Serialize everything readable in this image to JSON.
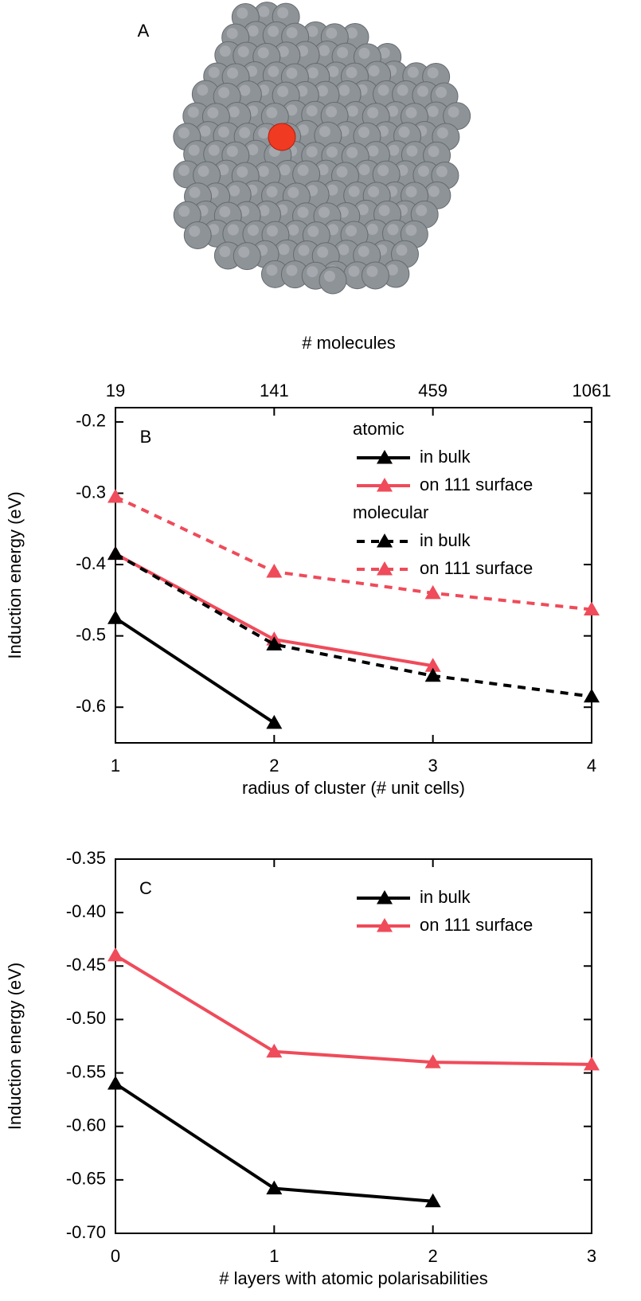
{
  "panel_a": {
    "label": "A"
  },
  "chart_data": [
    {
      "type": "line",
      "label": "B",
      "xlabel": "radius of cluster (# unit cells)",
      "ylabel": "Induction energy (eV)",
      "x2label": "# molecules",
      "x": [
        1,
        2,
        3,
        4
      ],
      "xlim": [
        1,
        4
      ],
      "xticks": [
        1,
        2,
        3,
        4
      ],
      "x2ticks": [
        {
          "value": 1,
          "label": "19"
        },
        {
          "value": 2,
          "label": "141"
        },
        {
          "value": 3,
          "label": "459"
        },
        {
          "value": 4,
          "label": "1061"
        }
      ],
      "ylim": [
        -0.65,
        -0.18
      ],
      "yticks": [
        -0.2,
        -0.3,
        -0.4,
        -0.5,
        -0.6
      ],
      "legend": "upper right",
      "series_groups": [
        {
          "name": "atomic",
          "series": [
            {
              "name": "in bulk",
              "color": "#000000",
              "linestyle": "solid",
              "values": [
                -0.475,
                -0.622,
                null,
                null
              ]
            },
            {
              "name": "on 111 surface",
              "color": "#ef4b5a",
              "linestyle": "solid",
              "values": [
                -0.385,
                -0.505,
                -0.542,
                null
              ]
            }
          ]
        },
        {
          "name": "molecular",
          "series": [
            {
              "name": "in bulk",
              "color": "#000000",
              "linestyle": "dashed",
              "values": [
                -0.385,
                -0.512,
                -0.556,
                -0.585
              ]
            },
            {
              "name": "on 111 surface",
              "color": "#ef4b5a",
              "linestyle": "dashed",
              "values": [
                -0.305,
                -0.41,
                -0.44,
                -0.463
              ]
            }
          ]
        }
      ]
    },
    {
      "type": "line",
      "label": "C",
      "xlabel": "# layers with atomic polarisabilities",
      "ylabel": "Induction energy (eV)",
      "x": [
        0,
        1,
        2,
        3
      ],
      "xlim": [
        0,
        3
      ],
      "xticks": [
        0,
        1,
        2,
        3
      ],
      "ylim": [
        -0.7,
        -0.35
      ],
      "yticks": [
        -0.35,
        {
          "value": -0.4,
          "label": "-0.40"
        },
        -0.45,
        {
          "value": -0.5,
          "label": "-0.50"
        },
        -0.55,
        {
          "value": -0.6,
          "label": "-0.60"
        },
        -0.65,
        {
          "value": -0.7,
          "label": "-0.70"
        }
      ],
      "legend": "upper right",
      "series": [
        {
          "name": "in bulk",
          "color": "#000000",
          "linestyle": "solid",
          "values": [
            -0.56,
            -0.658,
            -0.67,
            null
          ]
        },
        {
          "name": "on 111 surface",
          "color": "#ef4b5a",
          "linestyle": "solid",
          "values": [
            -0.44,
            -0.53,
            -0.54,
            -0.542
          ]
        }
      ]
    }
  ]
}
